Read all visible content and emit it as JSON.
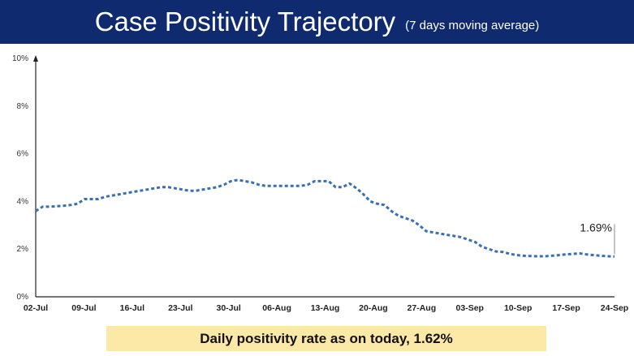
{
  "header": {
    "title": "Case Positivity Trajectory",
    "subtitle": "(7 days moving average)"
  },
  "footer": {
    "text": "Daily positivity rate as on today, 1.62%"
  },
  "colors": {
    "banner": "#0f2a6e",
    "line": "#3a6fb5",
    "footer_bg": "#fce9a8"
  },
  "chart_data": {
    "type": "line",
    "style": "dashed",
    "y_ticks": [
      "0%",
      "2%",
      "4%",
      "6%",
      "8%",
      "10%"
    ],
    "x_ticks": [
      "02-Jul",
      "09-Jul",
      "16-Jul",
      "23-Jul",
      "30-Jul",
      "06-Aug",
      "13-Aug",
      "20-Aug",
      "27-Aug",
      "03-Sep",
      "10-Sep",
      "17-Sep",
      "24-Sep"
    ],
    "ylim": [
      0,
      10
    ],
    "unit": "%",
    "x_start": "02-Jul",
    "x_end": "24-Sep",
    "series": [
      {
        "values": [
          3.6,
          3.78,
          3.78,
          3.8,
          3.82,
          3.85,
          3.9,
          4.1,
          4.1,
          4.1,
          4.2,
          4.25,
          4.3,
          4.35,
          4.4,
          4.45,
          4.5,
          4.55,
          4.6,
          4.6,
          4.55,
          4.5,
          4.45,
          4.45,
          4.5,
          4.55,
          4.6,
          4.7,
          4.85,
          4.9,
          4.85,
          4.8,
          4.7,
          4.65,
          4.65,
          4.65,
          4.65,
          4.65,
          4.65,
          4.7,
          4.85,
          4.85,
          4.85,
          4.6,
          4.6,
          4.75,
          4.55,
          4.3,
          4.0,
          3.9,
          3.85,
          3.6,
          3.4,
          3.3,
          3.2,
          3.0,
          2.75,
          2.7,
          2.65,
          2.6,
          2.55,
          2.5,
          2.4,
          2.3,
          2.1,
          2.0,
          1.9,
          1.88,
          1.8,
          1.75,
          1.72,
          1.71,
          1.7,
          1.7,
          1.72,
          1.75,
          1.78,
          1.8,
          1.82,
          1.78,
          1.75,
          1.72,
          1.7,
          1.69
        ],
        "last_label": "1.69%"
      }
    ],
    "grid": false,
    "legend": "none"
  }
}
